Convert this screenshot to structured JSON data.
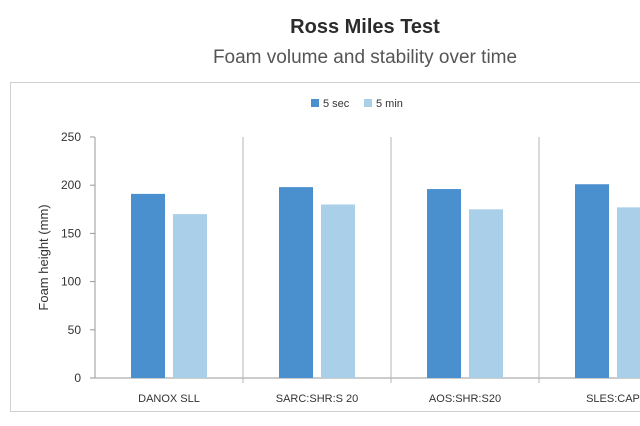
{
  "chart_data": {
    "type": "bar",
    "title": "Ross Miles Test",
    "subtitle": "Foam volume and stability over time",
    "ylabel": "Foam height (mm)",
    "xlabel": "",
    "ylim": [
      0,
      250
    ],
    "yticks": [
      0,
      50,
      100,
      150,
      200,
      250
    ],
    "grid": false,
    "legend_position": "top",
    "categories": [
      "DANOX SLL",
      "SARC:SHR:S 20",
      "AOS:SHR:S20",
      "SLES:CAP"
    ],
    "series": [
      {
        "name": "5 sec",
        "color": "#4a90cf",
        "values": [
          191,
          198,
          196,
          201
        ]
      },
      {
        "name": "5 min",
        "color": "#a9cfe9",
        "values": [
          170,
          180,
          175,
          177
        ]
      }
    ]
  }
}
